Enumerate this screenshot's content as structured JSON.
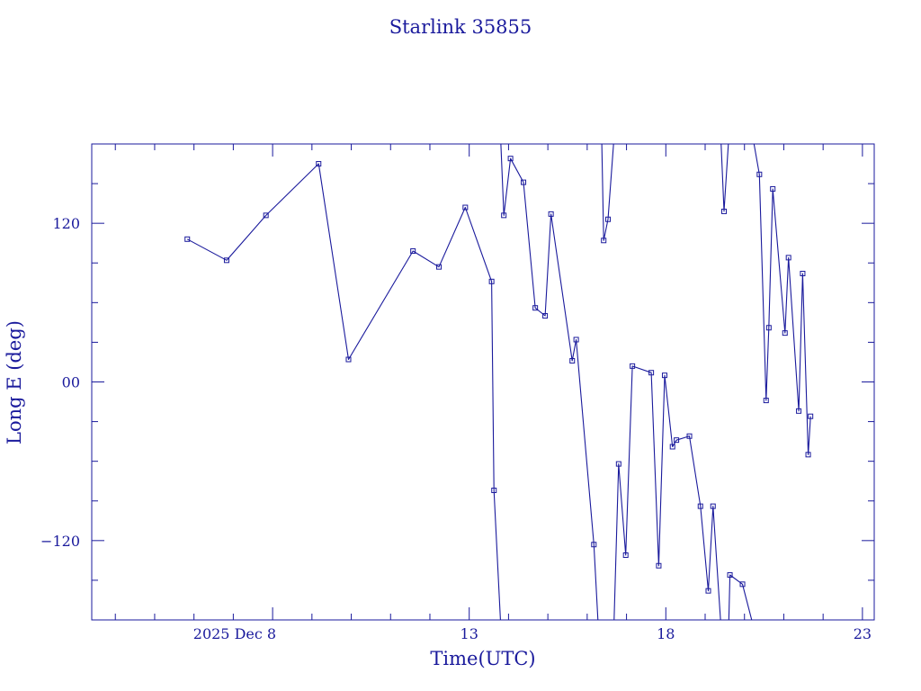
{
  "chart_data": {
    "type": "line",
    "title": "Starlink 35855",
    "xlabel": "Time(UTC)",
    "ylabel": "Long E (deg)",
    "x_unit": "days of December 2025 (UTC)",
    "xlim": [
      3.4,
      23.3
    ],
    "ylim": [
      -180,
      180
    ],
    "x_ticks": [
      {
        "value": 8,
        "label": "2025 Dec  8"
      },
      {
        "value": 13,
        "label": "13"
      },
      {
        "value": 18,
        "label": "18"
      },
      {
        "value": 23,
        "label": "23"
      }
    ],
    "y_ticks": [
      {
        "value": 120,
        "label": "120"
      },
      {
        "value": 0,
        "label": "00"
      },
      {
        "value": -120,
        "label": "−120"
      }
    ],
    "grid": false,
    "colors": {
      "line": "#1a1a9c",
      "text": "#1a1a9c",
      "background": "#ffffff"
    },
    "series": [
      {
        "points": [
          [
            5.83,
            108
          ],
          [
            6.83,
            92
          ],
          [
            7.83,
            126
          ],
          [
            9.17,
            165
          ],
          [
            9.93,
            17
          ],
          [
            11.57,
            99
          ],
          [
            12.23,
            87
          ],
          [
            12.9,
            132
          ],
          [
            13.57,
            76
          ],
          [
            13.63,
            -82
          ],
          [
            13.8,
            -184
          ]
        ]
      },
      {
        "points": [
          [
            13.8,
            183
          ],
          [
            13.88,
            126
          ],
          [
            14.05,
            169
          ],
          [
            14.38,
            151
          ],
          [
            14.68,
            56
          ],
          [
            14.93,
            50
          ],
          [
            15.08,
            127
          ],
          [
            15.62,
            16
          ],
          [
            15.72,
            32
          ],
          [
            16.17,
            -123
          ],
          [
            16.28,
            -184
          ]
        ]
      },
      {
        "points": [
          [
            16.37,
            184
          ],
          [
            16.42,
            107
          ],
          [
            16.53,
            123
          ],
          [
            16.68,
            184
          ]
        ]
      },
      {
        "points": [
          [
            16.68,
            -184
          ],
          [
            16.8,
            -62
          ],
          [
            16.98,
            -131
          ],
          [
            17.15,
            12
          ],
          [
            17.63,
            7
          ],
          [
            17.82,
            -139
          ],
          [
            17.97,
            5
          ],
          [
            18.17,
            -49
          ],
          [
            18.27,
            -44
          ],
          [
            18.6,
            -41
          ],
          [
            18.88,
            -94
          ],
          [
            19.08,
            -158
          ],
          [
            19.2,
            -94
          ],
          [
            19.4,
            -184
          ]
        ]
      },
      {
        "points": [
          [
            19.4,
            184
          ],
          [
            19.48,
            129
          ],
          [
            19.6,
            184
          ]
        ]
      },
      {
        "points": [
          [
            19.6,
            -184
          ],
          [
            19.63,
            -146
          ],
          [
            19.95,
            -153
          ],
          [
            20.22,
            -184
          ]
        ]
      },
      {
        "points": [
          [
            20.22,
            184
          ],
          [
            20.38,
            157
          ],
          [
            20.55,
            -14
          ],
          [
            20.62,
            41
          ],
          [
            20.72,
            146
          ],
          [
            21.03,
            37
          ],
          [
            21.12,
            94
          ],
          [
            21.38,
            -22
          ],
          [
            21.48,
            82
          ],
          [
            21.62,
            -55
          ],
          [
            21.68,
            -26
          ]
        ]
      }
    ]
  }
}
